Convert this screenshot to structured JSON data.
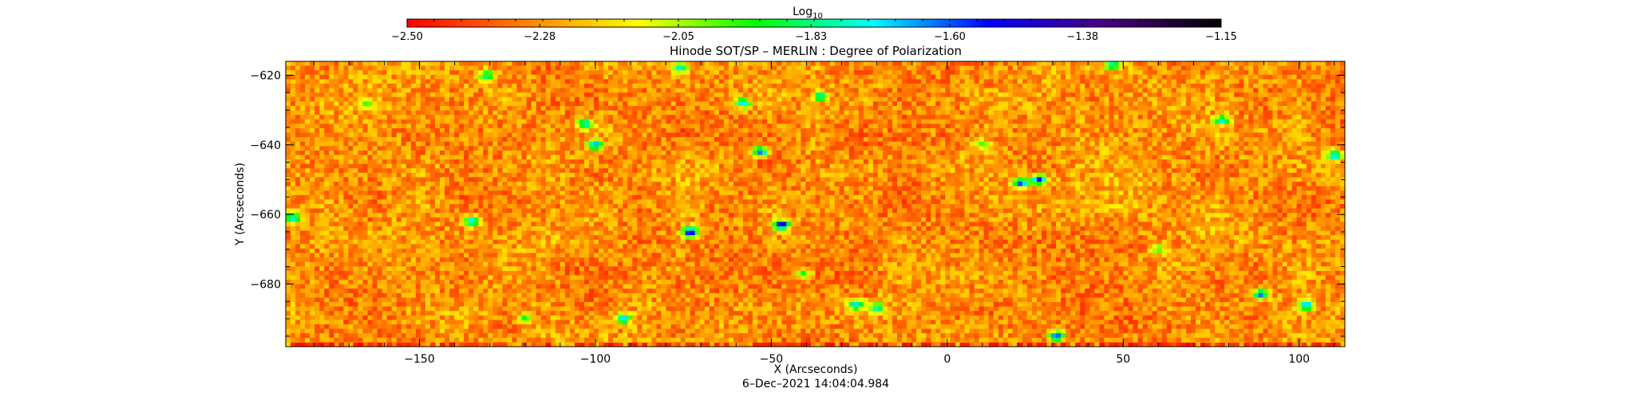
{
  "chart_data": {
    "type": "heatmap",
    "title": "Hinode SOT/SP – MERLIN : Degree of Polarization",
    "xlabel": "X (Arcseconds)",
    "ylabel": "Y (Arcseconds)",
    "timestamp": "6–Dec–2021 14:04:04.984",
    "xlim": [
      -188,
      113
    ],
    "ylim": [
      -698,
      -616
    ],
    "x_ticks": [
      {
        "value": -150,
        "label": "−150"
      },
      {
        "value": -100,
        "label": "−100"
      },
      {
        "value": -50,
        "label": "−50"
      },
      {
        "value": 0,
        "label": "0"
      },
      {
        "value": 50,
        "label": "50"
      },
      {
        "value": 100,
        "label": "100"
      }
    ],
    "y_ticks": [
      {
        "value": -620,
        "label": "−620"
      },
      {
        "value": -640,
        "label": "−640"
      },
      {
        "value": -660,
        "label": "−660"
      },
      {
        "value": -680,
        "label": "−680"
      }
    ],
    "colorbar": {
      "title": "Log",
      "title_subscript": "10",
      "range": [
        -2.5,
        -1.15
      ],
      "ticks": [
        {
          "value": -2.5,
          "label": "−2.50"
        },
        {
          "value": -2.28,
          "label": "−2.28"
        },
        {
          "value": -2.05,
          "label": "−2.05"
        },
        {
          "value": -1.83,
          "label": "−1.83"
        },
        {
          "value": -1.6,
          "label": "−1.60"
        },
        {
          "value": -1.38,
          "label": "−1.38"
        },
        {
          "value": -1.15,
          "label": "−1.15"
        }
      ],
      "colors": [
        "#ff0000",
        "#ff8000",
        "#ffff00",
        "#00ff00",
        "#00ffff",
        "#0000ff",
        "#4b0082",
        "#000000"
      ]
    },
    "field": {
      "background_value_range": [
        -2.45,
        -2.12
      ],
      "strong_patches": [
        {
          "x": -73,
          "y": -665,
          "value": -1.45
        },
        {
          "x": -47,
          "y": -663,
          "value": -1.45
        },
        {
          "x": 21,
          "y": -651,
          "value": -1.55
        },
        {
          "x": 26,
          "y": -650,
          "value": -1.5
        },
        {
          "x": -53,
          "y": -642,
          "value": -1.6
        },
        {
          "x": -100,
          "y": -640,
          "value": -1.65
        },
        {
          "x": -103,
          "y": -634,
          "value": -1.7
        },
        {
          "x": -58,
          "y": -628,
          "value": -1.7
        },
        {
          "x": -135,
          "y": -662,
          "value": -1.65
        },
        {
          "x": -186,
          "y": -661,
          "value": -1.7
        },
        {
          "x": -92,
          "y": -690,
          "value": -1.65
        },
        {
          "x": 31,
          "y": -695,
          "value": -1.55
        },
        {
          "x": 89,
          "y": -683,
          "value": -1.6
        },
        {
          "x": 110,
          "y": -643,
          "value": -1.65
        },
        {
          "x": 78,
          "y": -633,
          "value": -1.7
        },
        {
          "x": -26,
          "y": -686,
          "value": -1.7
        },
        {
          "x": -36,
          "y": -626,
          "value": -1.75
        },
        {
          "x": -76,
          "y": -618,
          "value": -1.75
        },
        {
          "x": 47,
          "y": -617,
          "value": -1.75
        },
        {
          "x": -131,
          "y": -620,
          "value": -1.8
        },
        {
          "x": 102,
          "y": -686,
          "value": -1.65
        },
        {
          "x": -20,
          "y": -687,
          "value": -1.75
        },
        {
          "x": -41,
          "y": -677,
          "value": -1.9
        },
        {
          "x": 10,
          "y": -640,
          "value": -1.95
        },
        {
          "x": -165,
          "y": -628,
          "value": -1.95
        },
        {
          "x": 60,
          "y": -670,
          "value": -1.95
        },
        {
          "x": -120,
          "y": -690,
          "value": -1.9
        }
      ]
    }
  }
}
